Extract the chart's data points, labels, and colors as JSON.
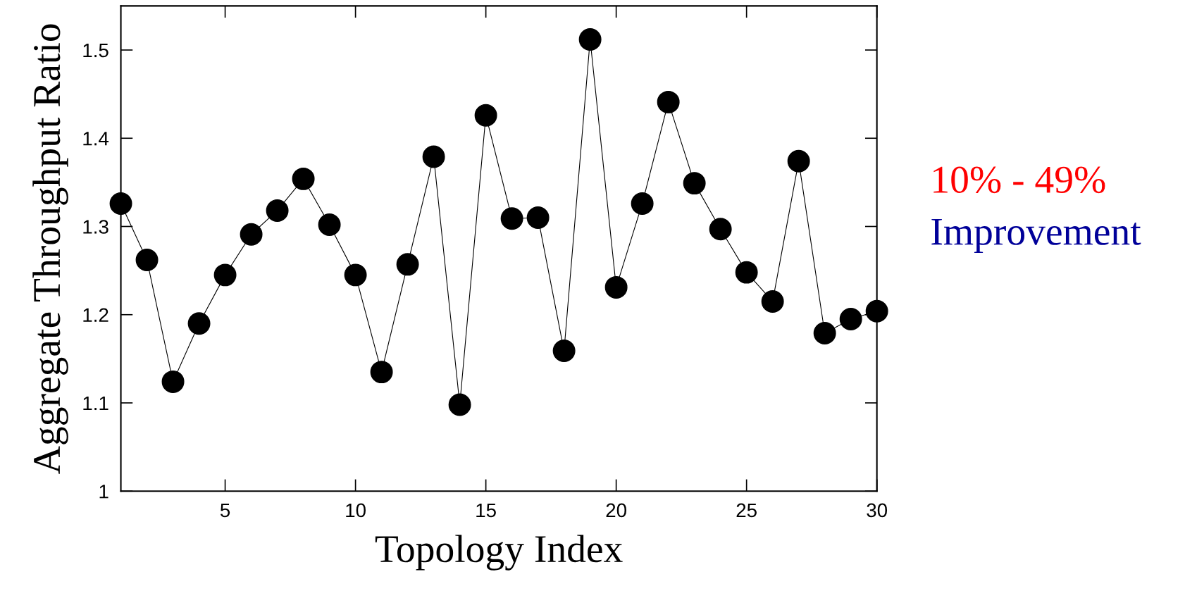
{
  "chart_data": {
    "type": "line",
    "xlabel": "Topology Index",
    "ylabel": "Aggregate Throughput Ratio",
    "x": [
      1,
      2,
      3,
      4,
      5,
      6,
      7,
      8,
      9,
      10,
      11,
      12,
      13,
      14,
      15,
      16,
      17,
      18,
      19,
      20,
      21,
      22,
      23,
      24,
      25,
      26,
      27,
      28,
      29,
      30
    ],
    "series": [
      {
        "color": "#000000",
        "values": [
          1.326,
          1.262,
          1.124,
          1.19,
          1.245,
          1.291,
          1.318,
          1.354,
          1.302,
          1.245,
          1.135,
          1.257,
          1.379,
          1.098,
          1.426,
          1.309,
          1.31,
          1.159,
          1.512,
          1.231,
          1.326,
          1.441,
          1.349,
          1.297,
          1.248,
          1.215,
          1.374,
          1.179,
          1.195,
          1.204
        ]
      }
    ],
    "marker": "circle",
    "line_style": "solid",
    "grid": false,
    "legend": false,
    "xlim": [
      1,
      30
    ],
    "xticks": [
      5,
      10,
      15,
      20,
      25,
      30
    ],
    "ylim": [
      1,
      1.55
    ],
    "yticks": [
      1,
      1.1,
      1.2,
      1.3,
      1.4,
      1.5
    ],
    "annotations": [
      "10% - 49%",
      "Improvement"
    ]
  }
}
